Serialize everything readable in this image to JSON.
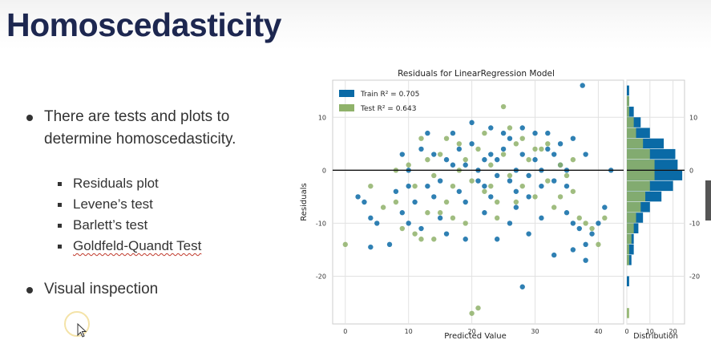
{
  "slide": {
    "title": "Homoscedasticity",
    "bullets": [
      "There are tests and plots to determine homoscedasticity.",
      "Visual inspection"
    ],
    "bullet1_line1": "There are tests and plots to",
    "bullet1_line2": "determine homoscedasticity.",
    "sub_bullets": [
      "Residuals plot",
      "Levene’s test",
      "Barlett’s test",
      "Goldfeld-Quandt Test"
    ]
  },
  "colors": {
    "title": "#1d2750",
    "train": "#0a6aa6",
    "test": "#8fb26a"
  },
  "chart_data": {
    "type": "scatter",
    "title": "Residuals for LinearRegression Model",
    "xlabel": "Predicted Value",
    "ylabel": "Residuals",
    "xlim": [
      -2,
      44
    ],
    "ylim": [
      -29,
      17
    ],
    "xticks": [
      0,
      10,
      20,
      30,
      40
    ],
    "yticks": [
      10,
      0,
      -10,
      -20
    ],
    "hline": 0,
    "legend": {
      "placement": "top-left",
      "train_label": "Train R² = 0.705",
      "test_label": "Test R² = 0.643"
    },
    "series": [
      {
        "name": "Train",
        "color": "#0a6aa6",
        "points": [
          [
            37.5,
            16
          ],
          [
            2,
            -5
          ],
          [
            3,
            -6
          ],
          [
            4,
            -9
          ],
          [
            4,
            -14.5
          ],
          [
            5,
            -10
          ],
          [
            7,
            -14
          ],
          [
            8,
            -4
          ],
          [
            9,
            -8
          ],
          [
            10,
            -10
          ],
          [
            9,
            3
          ],
          [
            10,
            -3
          ],
          [
            10,
            0
          ],
          [
            12,
            4
          ],
          [
            11,
            -6
          ],
          [
            13,
            -3
          ],
          [
            14,
            -5
          ],
          [
            12,
            -11
          ],
          [
            15,
            -9
          ],
          [
            15,
            -2
          ],
          [
            16,
            2
          ],
          [
            17,
            1
          ],
          [
            18,
            -4
          ],
          [
            16,
            -12
          ],
          [
            19,
            -6
          ],
          [
            20,
            5
          ],
          [
            21,
            0
          ],
          [
            22,
            2
          ],
          [
            22,
            -3
          ],
          [
            19,
            -13
          ],
          [
            23,
            3
          ],
          [
            24,
            -1
          ],
          [
            25,
            4
          ],
          [
            25,
            7
          ],
          [
            26,
            -2
          ],
          [
            27,
            0
          ],
          [
            27,
            -7
          ],
          [
            28,
            3
          ],
          [
            29,
            -1
          ],
          [
            29,
            -5
          ],
          [
            30,
            2
          ],
          [
            31,
            0
          ],
          [
            31,
            -9
          ],
          [
            32,
            4
          ],
          [
            33,
            -2
          ],
          [
            33,
            -16
          ],
          [
            34,
            1
          ],
          [
            35,
            -3
          ],
          [
            35,
            -8
          ],
          [
            36,
            -15
          ],
          [
            37,
            -11
          ],
          [
            38,
            -17
          ],
          [
            39,
            -12
          ],
          [
            40,
            -10
          ],
          [
            41,
            -7
          ],
          [
            42,
            0
          ],
          [
            20,
            9
          ],
          [
            23,
            8
          ],
          [
            26,
            6
          ],
          [
            28,
            8
          ],
          [
            30,
            7
          ],
          [
            32,
            7
          ],
          [
            34,
            5
          ],
          [
            36,
            6
          ],
          [
            38,
            3
          ],
          [
            17,
            7
          ],
          [
            14,
            3
          ],
          [
            13,
            7
          ],
          [
            18,
            4
          ],
          [
            24,
            2
          ],
          [
            27,
            -4
          ],
          [
            22,
            -8
          ],
          [
            26,
            -10
          ],
          [
            29,
            -12
          ],
          [
            36,
            -10
          ],
          [
            38,
            -14
          ],
          [
            19,
            1
          ],
          [
            21,
            -2
          ],
          [
            23,
            -5
          ],
          [
            28,
            -22
          ],
          [
            24,
            -13
          ],
          [
            31,
            -3
          ],
          [
            33,
            3
          ],
          [
            35,
            0
          ]
        ]
      },
      {
        "name": "Test",
        "color": "#8fb26a",
        "points": [
          [
            25,
            12
          ],
          [
            0,
            -14
          ],
          [
            4,
            -3
          ],
          [
            6,
            -7
          ],
          [
            8,
            -6
          ],
          [
            10,
            1
          ],
          [
            11,
            -3
          ],
          [
            12,
            -13
          ],
          [
            13,
            2
          ],
          [
            14,
            -1
          ],
          [
            15,
            -8
          ],
          [
            16,
            6
          ],
          [
            17,
            -3
          ],
          [
            18,
            0
          ],
          [
            19,
            2
          ],
          [
            20,
            -2
          ],
          [
            21,
            4
          ],
          [
            22,
            -4
          ],
          [
            23,
            1
          ],
          [
            24,
            -6
          ],
          [
            25,
            3
          ],
          [
            26,
            -1
          ],
          [
            27,
            5
          ],
          [
            28,
            -3
          ],
          [
            29,
            2
          ],
          [
            30,
            -5
          ],
          [
            31,
            4
          ],
          [
            32,
            -2
          ],
          [
            33,
            -7
          ],
          [
            34,
            1
          ],
          [
            35,
            -1
          ],
          [
            36,
            -4
          ],
          [
            37,
            -9
          ],
          [
            38,
            -10
          ],
          [
            39,
            -11
          ],
          [
            40,
            -14
          ],
          [
            41,
            -9
          ],
          [
            21,
            -26
          ],
          [
            20,
            -27
          ],
          [
            17,
            -9
          ],
          [
            14,
            -13
          ],
          [
            13,
            -8
          ],
          [
            11,
            -12
          ],
          [
            9,
            -11
          ],
          [
            27,
            -6
          ],
          [
            24,
            -9
          ],
          [
            19,
            -10
          ],
          [
            16,
            -6
          ],
          [
            22,
            7
          ],
          [
            26,
            8
          ],
          [
            28,
            6
          ],
          [
            30,
            4
          ],
          [
            18,
            5
          ],
          [
            15,
            3
          ],
          [
            23,
            -3
          ],
          [
            32,
            5
          ],
          [
            34,
            -5
          ],
          [
            36,
            2
          ],
          [
            8,
            0
          ],
          [
            12,
            6
          ]
        ]
      }
    ],
    "distribution": {
      "xlabel": "Distribution",
      "xlim": [
        0,
        25
      ],
      "xticks": [
        0,
        10,
        20
      ],
      "bin_centers": [
        -27,
        -21,
        -17,
        -15,
        -13,
        -11,
        -9,
        -7,
        -5,
        -3,
        -1,
        1,
        3,
        5,
        7,
        9,
        11,
        13,
        15
      ],
      "train_counts": [
        0,
        1,
        2,
        3,
        3,
        5,
        7,
        10,
        15,
        20,
        24,
        22,
        21,
        16,
        10,
        6,
        3,
        1,
        1
      ],
      "test_counts": [
        1,
        0,
        1,
        1,
        2,
        3,
        4,
        6,
        8,
        10,
        12,
        12,
        10,
        7,
        4,
        3,
        1,
        1,
        0
      ]
    }
  }
}
